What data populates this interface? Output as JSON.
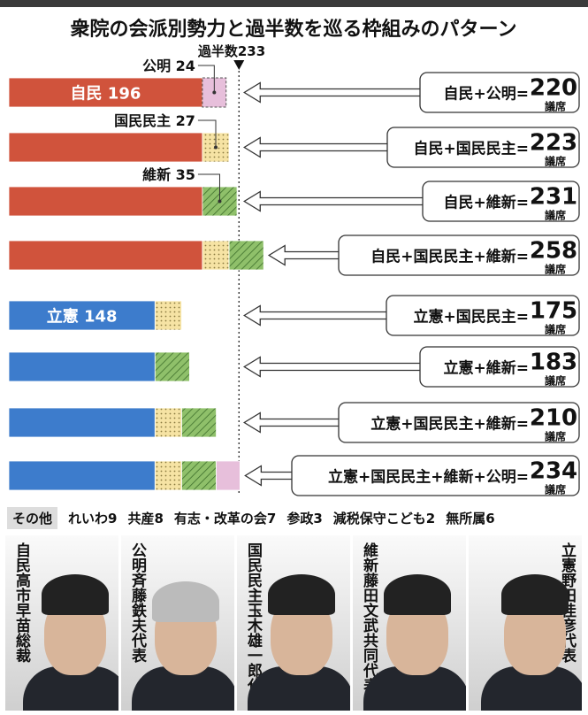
{
  "title": "衆院の会派別勢力と過半数を巡る枠組みのパターン",
  "majority_label": "過半数233",
  "unit": "議席",
  "colors": {
    "自民": "#d0533c",
    "立憲": "#3d7ccc",
    "公明": "#e7bfdb",
    "国民民主": "#f6e3a4",
    "維新": "#7fb35c"
  },
  "chart_data": {
    "type": "bar",
    "title": "衆院の会派別勢力と過半数を巡る枠組みのパターン",
    "majority": 233,
    "rows": [
      {
        "parties": [
          {
            "name": "自民",
            "value": 196,
            "label": "自民 196"
          },
          {
            "name": "公明",
            "value": 24,
            "label": "公明 24"
          }
        ],
        "callout": "自民+公明=",
        "total": "220"
      },
      {
        "parties": [
          {
            "name": "自民",
            "value": 196
          },
          {
            "name": "国民民主",
            "value": 27,
            "label": "国民民主 27"
          }
        ],
        "callout": "自民+国民民主=",
        "total": "223"
      },
      {
        "parties": [
          {
            "name": "自民",
            "value": 196
          },
          {
            "name": "維新",
            "value": 35,
            "label": "維新 35"
          }
        ],
        "callout": "自民+維新=",
        "total": "231"
      },
      {
        "parties": [
          {
            "name": "自民",
            "value": 196
          },
          {
            "name": "国民民主",
            "value": 27
          },
          {
            "name": "維新",
            "value": 35
          }
        ],
        "callout": "自民+国民民主+維新=",
        "total": "258"
      },
      {
        "parties": [
          {
            "name": "立憲",
            "value": 148,
            "label": "立憲 148"
          },
          {
            "name": "国民民主",
            "value": 27
          }
        ],
        "callout": "立憲+国民民主=",
        "total": "175"
      },
      {
        "parties": [
          {
            "name": "立憲",
            "value": 148
          },
          {
            "name": "維新",
            "value": 35
          }
        ],
        "callout": "立憲+維新=",
        "total": "183"
      },
      {
        "parties": [
          {
            "name": "立憲",
            "value": 148
          },
          {
            "name": "国民民主",
            "value": 27
          },
          {
            "name": "維新",
            "value": 35
          }
        ],
        "callout": "立憲+国民民主+維新=",
        "total": "210"
      },
      {
        "parties": [
          {
            "name": "立憲",
            "value": 148
          },
          {
            "name": "国民民主",
            "value": 27
          },
          {
            "name": "維新",
            "value": 35
          },
          {
            "name": "公明",
            "value": 24
          }
        ],
        "callout": "立憲+国民民主+維新+公明=",
        "total": "234"
      }
    ]
  },
  "others": {
    "label": "その他",
    "items": [
      "れいわ9",
      "共産8",
      "有志・改革の会7",
      "参政3",
      "減税保守こども2",
      "無所属6"
    ]
  },
  "leaders": [
    {
      "party": "自民",
      "name": "高市早苗総裁"
    },
    {
      "party": "公明",
      "name": "斉藤鉄夫代表"
    },
    {
      "party": "国民民主",
      "name": "玉木雄一郎代表"
    },
    {
      "party": "維新",
      "name": "藤田文武共同代表"
    },
    {
      "party": "立憲",
      "name": "野田佳彦代表"
    }
  ]
}
